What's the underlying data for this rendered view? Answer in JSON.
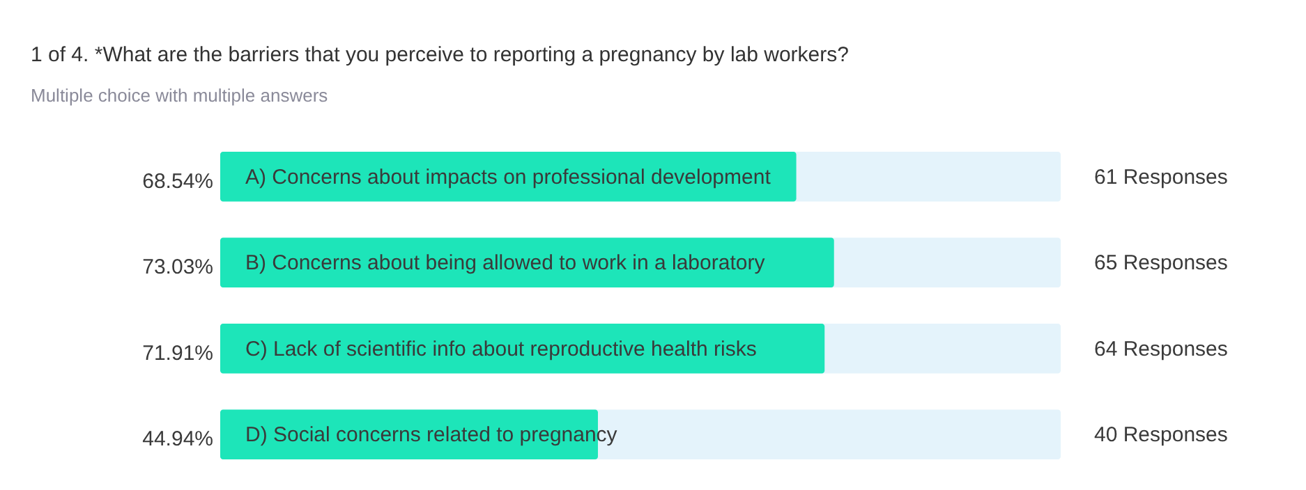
{
  "chart_data": {
    "type": "bar",
    "orientation": "horizontal",
    "title": "1 of 4. *What are the barriers that you perceive to reporting a pregnancy by lab workers?",
    "subtitle": "Multiple choice with multiple answers",
    "categories": [
      "A) Concerns about impacts on professional development",
      "B) Concerns about being allowed to work in a laboratory",
      "C) Lack of scientific info about reproductive health risks",
      "D) Social concerns related to pregnancy"
    ],
    "values": [
      68.54,
      73.03,
      71.91,
      44.94
    ],
    "value_labels": [
      "68.54%",
      "73.03%",
      "71.91%",
      "44.94%"
    ],
    "color": "#1de5b9",
    "xlim": [
      0,
      100
    ],
    "bands": [
      {
        "axis": "x",
        "from": 0,
        "to": 100,
        "color": "#e4f3fb"
      }
    ],
    "annotations": [
      "61 Responses",
      "65 Responses",
      "64 Responses",
      "40 Responses"
    ],
    "tick_labels": false,
    "grid": false
  }
}
